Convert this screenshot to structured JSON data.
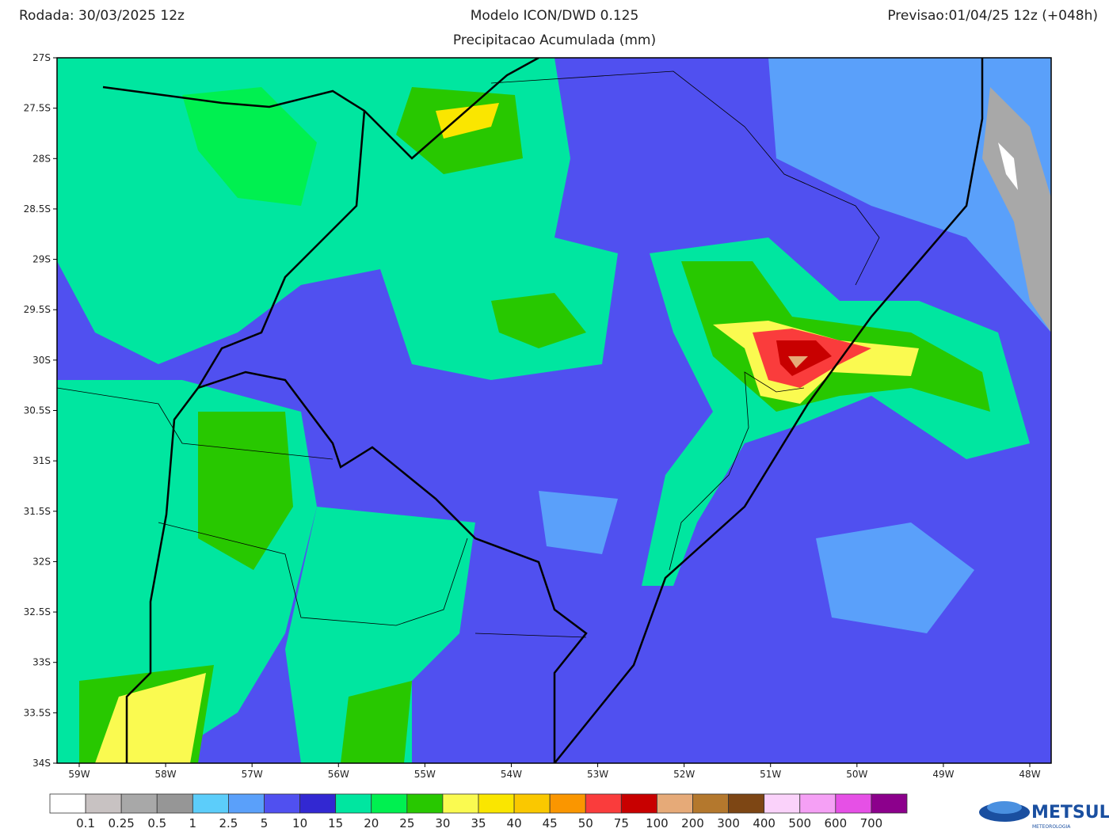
{
  "header": {
    "left": "Rodada: 30/03/2025 12z",
    "title": "Modelo ICON/DWD 0.125",
    "subtitle": "Precipitacao Acumulada (mm)",
    "right": "Previsao:01/04/25 12z (+048h)"
  },
  "lat_labels": [
    "27S",
    "27.5S",
    "28S",
    "28.5S",
    "29S",
    "29.5S",
    "30S",
    "30.5S",
    "31S",
    "31.5S",
    "32S",
    "32.5S",
    "33S",
    "33.5S",
    "34S"
  ],
  "lon_labels": [
    "59W",
    "58W",
    "57W",
    "56W",
    "55W",
    "54W",
    "53W",
    "52W",
    "51W",
    "50W",
    "49W",
    "48W"
  ],
  "colorbar": {
    "colors": [
      "#ffffff",
      "#c8c2c2",
      "#a8a8a8",
      "#969696",
      "#5ccdfa",
      "#5aa0fa",
      "#5050f0",
      "#3228d2",
      "#00e6a0",
      "#00f050",
      "#28c800",
      "#fafa50",
      "#fae600",
      "#fac800",
      "#fa9600",
      "#fa3c3c",
      "#c80000",
      "#e6aa78",
      "#b4782d",
      "#7d4614",
      "#fad2fa",
      "#f5a0f5",
      "#e650e6",
      "#8c008c"
    ],
    "labels": [
      "0.1",
      "0.25",
      "0.5",
      "1",
      "2.5",
      "5",
      "10",
      "15",
      "20",
      "25",
      "30",
      "35",
      "40",
      "45",
      "50",
      "75",
      "100",
      "200",
      "300",
      "400",
      "500",
      "600",
      "700"
    ]
  },
  "logo": {
    "name": "METSUL",
    "tagline": "METEOROLOGIA"
  }
}
